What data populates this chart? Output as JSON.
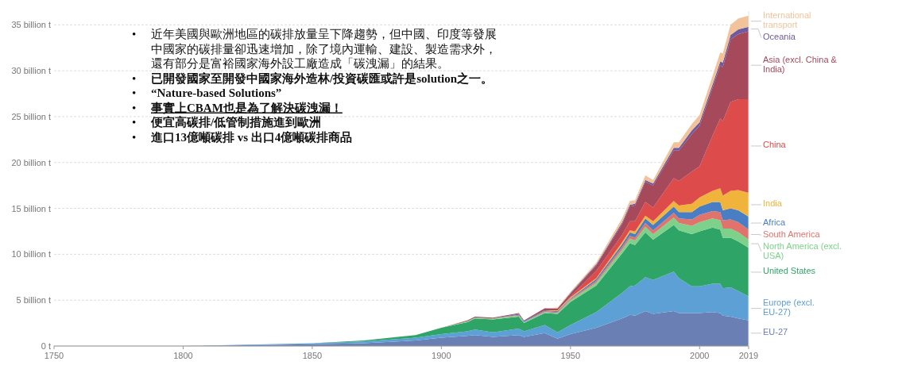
{
  "chart_data": {
    "type": "area",
    "stacked": true,
    "grid": "y",
    "legend": "right",
    "x": [
      1750,
      1800,
      1850,
      1870,
      1890,
      1900,
      1910,
      1913,
      1920,
      1930,
      1932,
      1940,
      1945,
      1950,
      1960,
      1970,
      1973,
      1975,
      1979,
      1982,
      1990,
      1992,
      1997,
      2000,
      2005,
      2008,
      2009,
      2012,
      2015,
      2019
    ],
    "xlim": [
      1750,
      2019
    ],
    "xticks": [
      1750,
      1800,
      1850,
      1900,
      1950,
      2000,
      2019
    ],
    "ylim": [
      0,
      36.5
    ],
    "yticks": [
      {
        "value": 0,
        "label": "0 t"
      },
      {
        "value": 5,
        "label": "5 billion t"
      },
      {
        "value": 10,
        "label": "10 billion t"
      },
      {
        "value": 15,
        "label": "15 billion t"
      },
      {
        "value": 20,
        "label": "20 billion t"
      },
      {
        "value": 25,
        "label": "25 billion t"
      },
      {
        "value": 30,
        "label": "30 billion t"
      },
      {
        "value": 35,
        "label": "35 billion t"
      }
    ],
    "series": [
      {
        "name": "EU-27",
        "color": "#6a7fb4",
        "values": [
          0,
          0,
          0.2,
          0.3,
          0.6,
          0.9,
          1.1,
          1.2,
          1.0,
          1.2,
          1.0,
          1.4,
          0.8,
          1.3,
          2.0,
          3.0,
          3.4,
          3.3,
          3.8,
          3.5,
          3.8,
          3.6,
          3.6,
          3.6,
          3.7,
          3.6,
          3.3,
          3.2,
          3.0,
          2.8
        ]
      },
      {
        "name": "Europe (excl. EU-27)",
        "color": "#5da0d6",
        "values": [
          0,
          0,
          0.1,
          0.2,
          0.3,
          0.4,
          0.5,
          0.6,
          0.5,
          0.7,
          0.6,
          0.9,
          0.7,
          1.0,
          1.7,
          2.8,
          3.1,
          3.3,
          3.7,
          3.7,
          4.3,
          3.8,
          2.9,
          2.9,
          3.1,
          3.2,
          3.0,
          3.2,
          3.0,
          2.6
        ]
      },
      {
        "name": "United States",
        "color": "#2ea566",
        "values": [
          0,
          0,
          0,
          0.1,
          0.3,
          0.7,
          1.0,
          1.2,
          1.4,
          1.3,
          0.9,
          1.3,
          2.0,
          2.5,
          2.9,
          4.3,
          4.7,
          4.4,
          4.9,
          4.4,
          5.1,
          5.2,
          5.7,
          6.0,
          6.1,
          5.9,
          5.5,
          5.4,
          5.4,
          5.3
        ]
      },
      {
        "name": "North America (excl. USA)",
        "color": "#7ed18b",
        "values": [
          0,
          0,
          0,
          0,
          0,
          0,
          0.1,
          0.1,
          0.1,
          0.1,
          0.1,
          0.1,
          0.1,
          0.2,
          0.3,
          0.4,
          0.5,
          0.5,
          0.6,
          0.6,
          0.8,
          0.8,
          0.9,
          1.0,
          1.0,
          1.0,
          1.0,
          1.0,
          1.0,
          0.9
        ]
      },
      {
        "name": "South America",
        "color": "#e0746c",
        "values": [
          0,
          0,
          0,
          0,
          0,
          0,
          0,
          0,
          0,
          0.1,
          0,
          0.1,
          0.1,
          0.1,
          0.2,
          0.3,
          0.3,
          0.3,
          0.4,
          0.4,
          0.5,
          0.5,
          0.7,
          0.8,
          0.8,
          0.9,
          0.9,
          1.0,
          1.1,
          1.1
        ]
      },
      {
        "name": "Africa",
        "color": "#4a7ec4",
        "values": [
          0,
          0,
          0,
          0,
          0,
          0,
          0,
          0,
          0,
          0.1,
          0.1,
          0.1,
          0.1,
          0.1,
          0.2,
          0.3,
          0.4,
          0.4,
          0.5,
          0.6,
          0.7,
          0.7,
          0.8,
          0.9,
          1.0,
          1.1,
          1.1,
          1.2,
          1.3,
          1.4
        ]
      },
      {
        "name": "India",
        "color": "#f0b43c",
        "values": [
          0,
          0,
          0,
          0,
          0,
          0,
          0,
          0,
          0,
          0,
          0,
          0,
          0.1,
          0.1,
          0.1,
          0.2,
          0.2,
          0.3,
          0.3,
          0.4,
          0.6,
          0.7,
          0.9,
          1.0,
          1.2,
          1.5,
          1.6,
          1.9,
          2.2,
          2.6
        ]
      },
      {
        "name": "China",
        "color": "#dd4b4b",
        "values": [
          0,
          0,
          0,
          0,
          0,
          0,
          0,
          0,
          0,
          0,
          0,
          0,
          0,
          0.1,
          0.8,
          0.8,
          1.0,
          1.1,
          1.5,
          1.5,
          2.5,
          2.7,
          3.5,
          3.4,
          6.0,
          7.6,
          8.1,
          9.7,
          9.9,
          10.2
        ]
      },
      {
        "name": "Asia (excl. China & India)",
        "color": "#a6495b",
        "values": [
          0,
          0,
          0,
          0,
          0,
          0,
          0.1,
          0.1,
          0.1,
          0.1,
          0.1,
          0.2,
          0.2,
          0.3,
          0.6,
          1.2,
          1.6,
          1.7,
          2.2,
          2.4,
          3.0,
          3.3,
          4.1,
          4.4,
          5.2,
          5.8,
          5.9,
          6.8,
          7.1,
          7.4
        ]
      },
      {
        "name": "Oceania",
        "color": "#6f5aa0",
        "values": [
          0,
          0,
          0,
          0,
          0,
          0,
          0,
          0,
          0,
          0,
          0,
          0,
          0,
          0.1,
          0.1,
          0.2,
          0.2,
          0.2,
          0.2,
          0.2,
          0.3,
          0.3,
          0.4,
          0.4,
          0.4,
          0.4,
          0.5,
          0.5,
          0.5,
          0.5
        ]
      },
      {
        "name": "International transport",
        "color": "#f2c39a",
        "values": [
          0,
          0,
          0,
          0,
          0,
          0,
          0,
          0,
          0,
          0,
          0,
          0,
          0.1,
          0.1,
          0.2,
          0.4,
          0.4,
          0.4,
          0.5,
          0.4,
          0.6,
          0.6,
          0.7,
          0.8,
          0.9,
          1.0,
          1.0,
          1.1,
          1.2,
          1.2
        ]
      }
    ],
    "annotations": [
      "• 近年美國與歐洲地區的碳排放量呈下降趨勢，但中國、印度等發展中國家的碳排量卻迅速增加，除了境內運輸、建設、製造需求外，還有部分是富裕國家海外設工廠造成「碳洩漏」的結果。",
      "• 已開發國家至開發中國家海外造林/投資碳匯或許是solution之一。",
      "• “Nature-based Solutions”",
      "• 事實上CBAM也是為了解決碳洩漏！",
      "• 便宜高碳排/低管制措施進到歐洲",
      "• 進口13億噸碳排 vs 出口4億噸碳排商品"
    ]
  }
}
